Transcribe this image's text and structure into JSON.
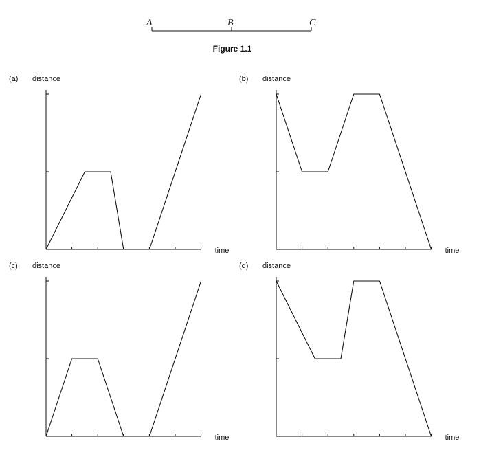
{
  "figure_title": "Figure 1.1",
  "segment": {
    "points": [
      "A",
      "B",
      "C"
    ]
  },
  "time_label": "time",
  "distance_label": "distance",
  "chart_data": [
    {
      "type": "line",
      "label": "(a)",
      "xlabel": "time",
      "ylabel": "distance",
      "x": [
        0,
        1.5,
        2.5,
        3,
        4,
        6
      ],
      "y": [
        0,
        1,
        1,
        0,
        0,
        2
      ],
      "xlim": [
        0,
        6
      ],
      "ylim": [
        0,
        2
      ]
    },
    {
      "type": "line",
      "label": "(b)",
      "xlabel": "time",
      "ylabel": "distance",
      "x": [
        0,
        1,
        2,
        3,
        4,
        6
      ],
      "y": [
        2,
        1,
        1,
        2,
        2,
        0
      ],
      "xlim": [
        0,
        6
      ],
      "ylim": [
        0,
        2
      ]
    },
    {
      "type": "line",
      "label": "(c)",
      "xlabel": "time",
      "ylabel": "distance",
      "x": [
        0,
        1,
        2,
        3,
        4,
        6
      ],
      "y": [
        0,
        1,
        1,
        0,
        0,
        2
      ],
      "xlim": [
        0,
        6
      ],
      "ylim": [
        0,
        2
      ]
    },
    {
      "type": "line",
      "label": "(d)",
      "xlabel": "time",
      "ylabel": "distance",
      "x": [
        0,
        1.5,
        2.5,
        3,
        4,
        6
      ],
      "y": [
        2,
        1,
        1,
        2,
        2,
        0
      ],
      "xlim": [
        0,
        6
      ],
      "ylim": [
        0,
        2
      ]
    }
  ]
}
